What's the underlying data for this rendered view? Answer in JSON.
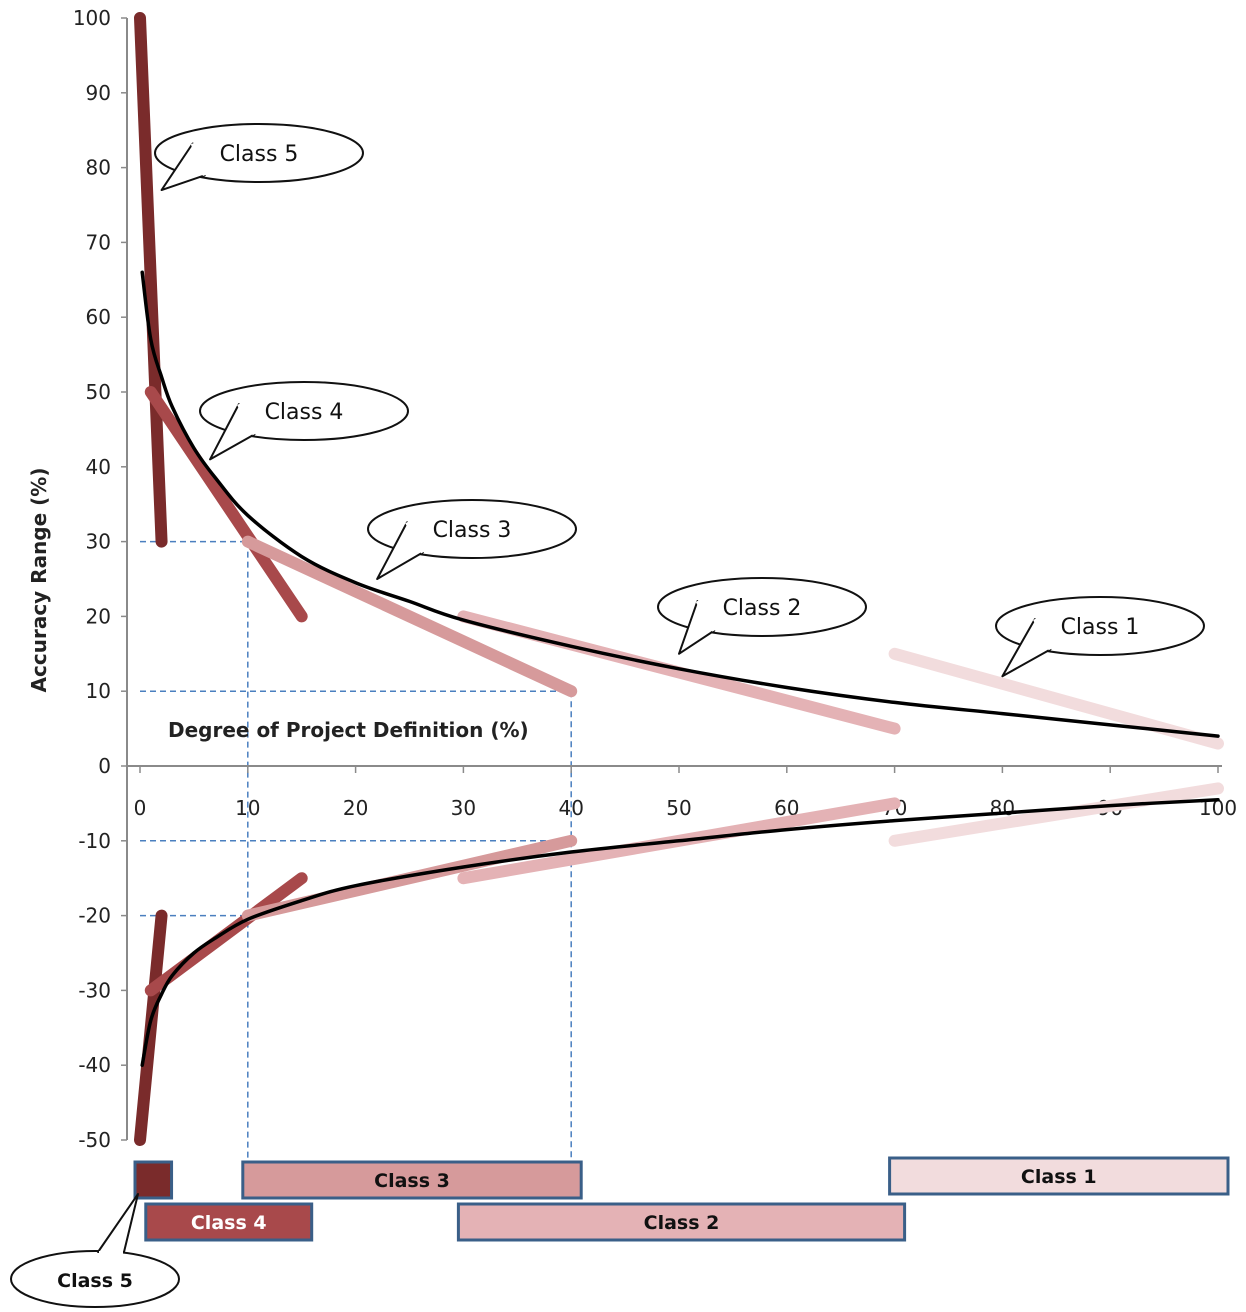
{
  "chart_data": {
    "type": "line",
    "ylabel": "Accuracy Range (%)",
    "xlabel": "Degree of Project Definition (%)",
    "xlim": [
      0,
      100
    ],
    "ylim": [
      -50,
      100
    ],
    "x_ticks": [
      0,
      10,
      20,
      30,
      40,
      50,
      60,
      70,
      80,
      90,
      100
    ],
    "y_ticks": [
      100,
      90,
      80,
      70,
      60,
      50,
      40,
      30,
      20,
      10,
      0,
      -10,
      -20,
      -30,
      -40,
      -50
    ],
    "grid": false,
    "colors": {
      "class_5": "#7a2b2b",
      "class_4": "#a8494b",
      "class_3": "#d69a9b",
      "class_2": "#e4b2b5",
      "class_1": "#f2dcdd",
      "trend": "#000000",
      "guides": "#4a7fbf",
      "bar_border": "#3a5f88"
    },
    "trend_curves": [
      {
        "points": [
          [
            0.2,
            66
          ],
          [
            1,
            57
          ],
          [
            2,
            52
          ],
          [
            3,
            48
          ],
          [
            5,
            42.5
          ],
          [
            7,
            38.5
          ],
          [
            10,
            33.5
          ],
          [
            15,
            28
          ],
          [
            20,
            24.5
          ],
          [
            25,
            22
          ],
          [
            30,
            19.5
          ],
          [
            40,
            16
          ],
          [
            50,
            13
          ],
          [
            60,
            10.5
          ],
          [
            70,
            8.5
          ],
          [
            80,
            7
          ],
          [
            90,
            5.5
          ],
          [
            100,
            4
          ]
        ]
      },
      {
        "points": [
          [
            0.2,
            -40
          ],
          [
            1,
            -34
          ],
          [
            2,
            -30.5
          ],
          [
            3,
            -28
          ],
          [
            5,
            -25
          ],
          [
            7,
            -23
          ],
          [
            10,
            -20.5
          ],
          [
            15,
            -18
          ],
          [
            20,
            -16
          ],
          [
            30,
            -13.5
          ],
          [
            40,
            -11.5
          ],
          [
            50,
            -10
          ],
          [
            60,
            -8.5
          ],
          [
            70,
            -7.3
          ],
          [
            80,
            -6.3
          ],
          [
            90,
            -5.3
          ],
          [
            100,
            -4.5
          ]
        ]
      }
    ],
    "series": [
      {
        "class": "class_5",
        "upper": [
          [
            0,
            100
          ],
          [
            2,
            30
          ]
        ],
        "lower": [
          [
            0,
            -50
          ],
          [
            2,
            -20
          ]
        ]
      },
      {
        "class": "class_4",
        "upper": [
          [
            1,
            50
          ],
          [
            15,
            20
          ]
        ],
        "lower": [
          [
            1,
            -30
          ],
          [
            15,
            -15
          ]
        ]
      },
      {
        "class": "class_3",
        "upper": [
          [
            10,
            30
          ],
          [
            40,
            10
          ]
        ],
        "lower": [
          [
            10,
            -20
          ],
          [
            40,
            -10
          ]
        ]
      },
      {
        "class": "class_2",
        "upper": [
          [
            30,
            20
          ],
          [
            70,
            5
          ]
        ],
        "lower": [
          [
            30,
            -15
          ],
          [
            70,
            -5
          ]
        ]
      },
      {
        "class": "class_1",
        "upper": [
          [
            70,
            15
          ],
          [
            100,
            3
          ]
        ],
        "lower": [
          [
            70,
            -10
          ],
          [
            100,
            -3
          ]
        ]
      }
    ],
    "guide_lines": [
      {
        "from": [
          0,
          30
        ],
        "to": [
          10,
          30
        ]
      },
      {
        "from": [
          0,
          10
        ],
        "to": [
          40,
          10
        ]
      },
      {
        "from": [
          0,
          -10
        ],
        "to": [
          40,
          -10
        ]
      },
      {
        "from": [
          0,
          -20
        ],
        "to": [
          10,
          -20
        ]
      },
      {
        "from": [
          10,
          30
        ],
        "to": [
          10,
          -53
        ]
      },
      {
        "from": [
          40,
          10
        ],
        "to": [
          40,
          -53
        ]
      }
    ],
    "callouts": [
      {
        "text": "Class 5",
        "class": "class_5",
        "pointer": [
          2,
          77
        ]
      },
      {
        "text": "Class 4",
        "class": "class_4",
        "pointer": [
          6.5,
          41
        ]
      },
      {
        "text": "Class 3",
        "class": "class_3",
        "pointer": [
          22,
          25
        ]
      },
      {
        "text": "Class 2",
        "class": "class_2",
        "pointer": [
          50,
          15
        ]
      },
      {
        "text": "Class 1",
        "class": "class_1",
        "pointer": [
          80,
          12
        ]
      }
    ],
    "range_bars": [
      {
        "label": "Class 5",
        "class": "class_5",
        "start": 0,
        "end": 2
      },
      {
        "label": "Class 4",
        "class": "class_4",
        "start": 1,
        "end": 15
      },
      {
        "label": "Class 3",
        "class": "class_3",
        "start": 10,
        "end": 40
      },
      {
        "label": "Class 2",
        "class": "class_2",
        "start": 30,
        "end": 70
      },
      {
        "label": "Class 1",
        "class": "class_1",
        "start": 70,
        "end": 100
      }
    ]
  }
}
